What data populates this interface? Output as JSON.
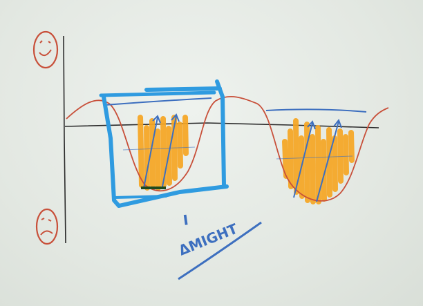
{
  "annotation": {
    "label": "ΔMIGHT",
    "tick": "I"
  },
  "icons": {
    "top": "happy-face-icon",
    "bottom": "sad-face-icon"
  },
  "colors": {
    "background": "#e6ebe6",
    "axis": "#2a2a2a",
    "wave": "#c8503a",
    "highlight_box": "#2f9be0",
    "pen_blue": "#3d6fbf",
    "fill_orange": "#f6a623",
    "face": "#c8503a"
  }
}
